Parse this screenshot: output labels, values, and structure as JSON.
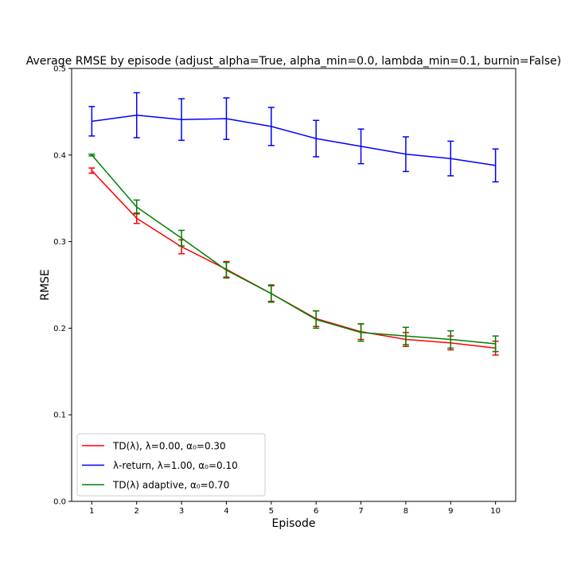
{
  "chart_data": {
    "type": "line",
    "title": "Average RMSE by episode (adjust_alpha=True, alpha_min=0.0, lambda_min=0.1, burnin=False)",
    "xlabel": "Episode",
    "ylabel": "RMSE",
    "x": [
      1,
      2,
      3,
      4,
      5,
      6,
      7,
      8,
      9,
      10
    ],
    "xlim": [
      0.55,
      10.45
    ],
    "ylim": [
      0.0,
      0.5
    ],
    "xticks": [
      "1",
      "2",
      "3",
      "4",
      "5",
      "6",
      "7",
      "8",
      "9",
      "10"
    ],
    "yticks": [
      "0.0",
      "0.1",
      "0.2",
      "0.3",
      "0.4",
      "0.5"
    ],
    "grid": false,
    "legend_position": "lower-left",
    "series": [
      {
        "name": "TD(λ), λ=0.00, α₀=0.30",
        "color": "#ff0000",
        "values": [
          0.382,
          0.327,
          0.294,
          0.268,
          0.24,
          0.211,
          0.196,
          0.187,
          0.183,
          0.177
        ],
        "err": [
          0.003,
          0.006,
          0.008,
          0.009,
          0.009,
          0.009,
          0.009,
          0.008,
          0.008,
          0.008
        ]
      },
      {
        "name": "λ-return, λ=1.00, α₀=0.10",
        "color": "#0000ff",
        "values": [
          0.439,
          0.446,
          0.441,
          0.442,
          0.433,
          0.419,
          0.41,
          0.401,
          0.396,
          0.388
        ],
        "err": [
          0.017,
          0.026,
          0.024,
          0.024,
          0.022,
          0.021,
          0.02,
          0.02,
          0.02,
          0.019
        ]
      },
      {
        "name": "TD(λ) adaptive, α₀=0.70",
        "color": "#008000",
        "values": [
          0.4,
          0.34,
          0.304,
          0.267,
          0.24,
          0.21,
          0.195,
          0.191,
          0.187,
          0.182
        ],
        "err": [
          0.001,
          0.008,
          0.009,
          0.009,
          0.01,
          0.01,
          0.01,
          0.01,
          0.01,
          0.009
        ]
      }
    ]
  }
}
